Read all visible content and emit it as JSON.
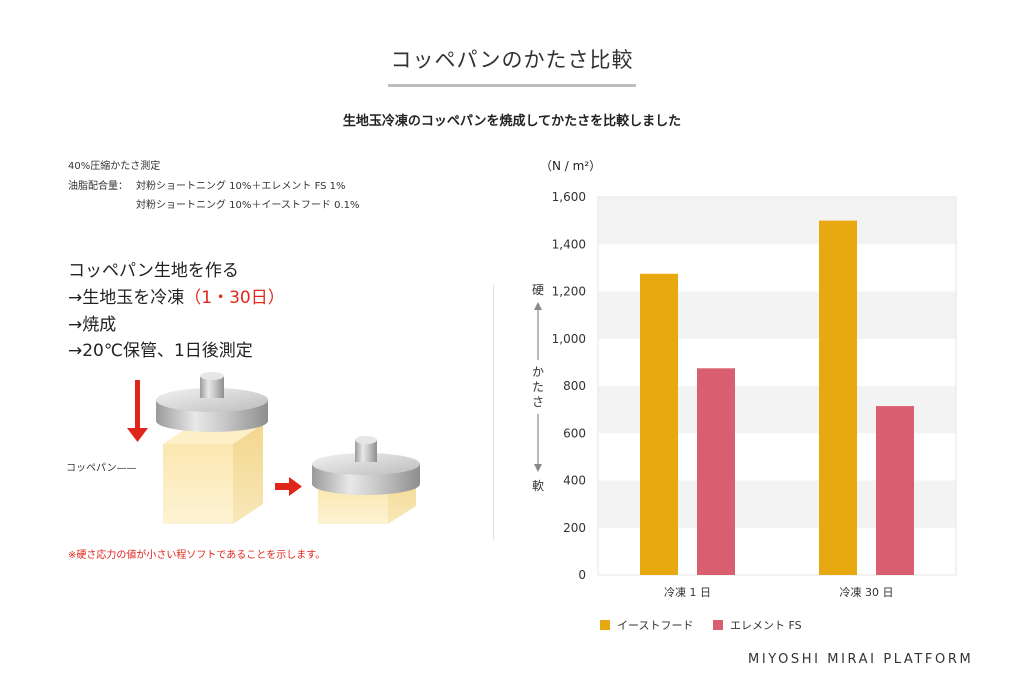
{
  "header": {
    "title": "コッペパンのかたさ比較",
    "subtitle": "生地玉冷凍のコッペパンを焼成してかたさを比較しました"
  },
  "conditions": {
    "label": "40%圧縮かたさ測定",
    "head": "油脂配合量：",
    "line1": "対粉ショートニング 10%＋エレメント FS 1%",
    "line2": "対粉ショートニング 10%＋イーストフード 0.1%"
  },
  "steps": {
    "s1": "コッペパン生地を作る",
    "s2_main": "→生地玉を冷凍",
    "s2_note": "（1・30日）",
    "s3": "→焼成",
    "s4": "→20℃保管、1日後測定"
  },
  "illustration": {
    "dough_label": "コッペパン——"
  },
  "footnote": "※硬さ応力の値が小さい程ソフトであることを示します。",
  "brand": "MIYOSHI MIRAI PLATFORM",
  "colors": {
    "yeast_food": "#e8a910",
    "element_fs": "#d95f70",
    "arrow_red": "#e0261b"
  },
  "chart_data": {
    "type": "bar",
    "unit_label": "（N / m²）",
    "categories": [
      "冷凍 1 日",
      "冷凍 30 日"
    ],
    "series": [
      {
        "name": "イーストフード",
        "color": "#e8a910",
        "values": [
          1275,
          1500
        ]
      },
      {
        "name": "エレメント FS",
        "color": "#d95f70",
        "values": [
          875,
          715
        ]
      }
    ],
    "ylim": [
      0,
      1600
    ],
    "yticks": [
      0,
      200,
      400,
      600,
      800,
      1000,
      1200,
      1400,
      1600
    ],
    "ytick_labels": [
      "0",
      "200",
      "400",
      "600",
      "800",
      "1,000",
      "1,200",
      "1,400",
      "1,600"
    ],
    "axis_annot": {
      "top": "硬",
      "middle": "かたさ",
      "bottom": "軟"
    },
    "legend_position": "bottom-left",
    "grid": "alternating bands"
  }
}
